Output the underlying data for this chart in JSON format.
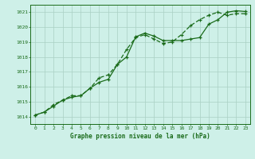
{
  "line1_x": [
    0,
    1,
    2,
    3,
    4,
    5,
    6,
    7,
    8,
    9,
    10,
    11,
    12,
    13,
    14,
    15,
    16,
    17,
    18,
    19,
    20,
    21,
    22,
    23
  ],
  "line1_y": [
    1014.1,
    1014.3,
    1014.7,
    1015.1,
    1015.3,
    1015.4,
    1015.9,
    1016.3,
    1016.5,
    1017.5,
    1018.0,
    1019.35,
    1019.6,
    1019.4,
    1019.1,
    1019.1,
    1019.1,
    1019.2,
    1019.3,
    1020.2,
    1020.5,
    1021.0,
    1021.1,
    1021.05
  ],
  "line2_x": [
    0,
    1,
    2,
    3,
    4,
    5,
    6,
    7,
    8,
    9,
    10,
    11,
    12,
    13,
    14,
    15,
    16,
    17,
    18,
    19,
    20,
    21,
    22,
    23
  ],
  "line2_y": [
    1014.1,
    1014.3,
    1014.8,
    1015.1,
    1015.4,
    1015.4,
    1015.9,
    1016.6,
    1016.8,
    1017.5,
    1018.5,
    1019.3,
    1019.5,
    1019.2,
    1018.9,
    1019.0,
    1019.5,
    1020.1,
    1020.5,
    1020.8,
    1021.0,
    1020.8,
    1020.9,
    1020.9
  ],
  "line_color": "#1a6b1a",
  "bg_color": "#cef0e8",
  "grid_color": "#aacfc4",
  "xlabel": "Graphe pression niveau de la mer (hPa)",
  "ylim": [
    1013.5,
    1021.5
  ],
  "xlim": [
    -0.5,
    23.5
  ],
  "yticks": [
    1014,
    1015,
    1016,
    1017,
    1018,
    1019,
    1020,
    1021
  ],
  "xticks": [
    0,
    1,
    2,
    3,
    4,
    5,
    6,
    7,
    8,
    9,
    10,
    11,
    12,
    13,
    14,
    15,
    16,
    17,
    18,
    19,
    20,
    21,
    22,
    23
  ]
}
